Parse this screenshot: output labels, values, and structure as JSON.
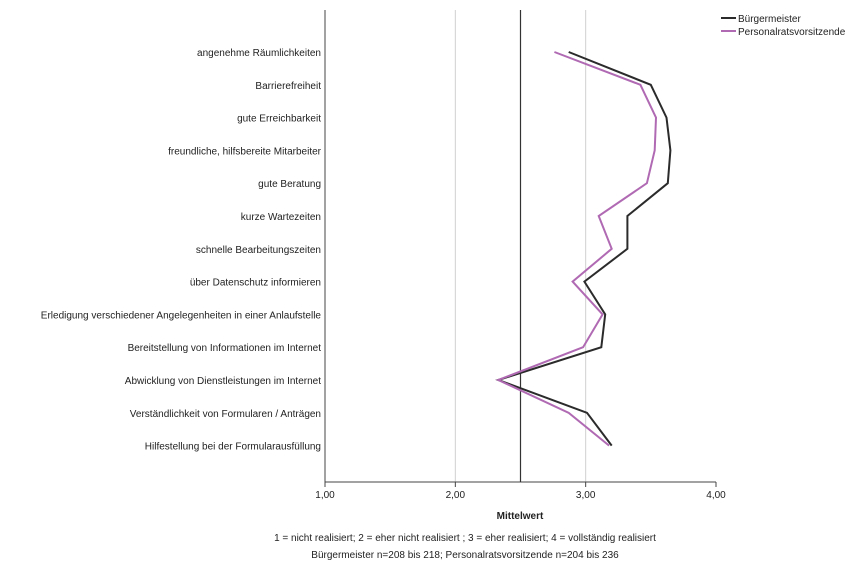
{
  "chart_data": {
    "type": "line",
    "orientation": "horizontal",
    "categories": [
      "angenehme Räumlichkeiten",
      "Barrierefreiheit",
      "gute Erreichbarkeit",
      "freundliche, hilfsbereite Mitarbeiter",
      "gute Beratung",
      "kurze Wartezeiten",
      "schnelle Bearbeitungszeiten",
      "über Datenschutz informieren",
      "Erledigung verschiedener Angelegenheiten in einer Anlaufstelle",
      "Bereitstellung von Informationen im Internet",
      "Abwicklung von Dienstleistungen im Internet",
      "Verständlichkeit von Formularen / Anträgen",
      "Hilfestellung bei der Formularausfüllung"
    ],
    "series": [
      {
        "name": "Bürgermeister",
        "color": "#2b2b2b",
        "values": [
          2.87,
          3.5,
          3.62,
          3.65,
          3.63,
          3.32,
          3.32,
          2.99,
          3.15,
          3.12,
          2.33,
          3.01,
          3.2
        ]
      },
      {
        "name": "Personalratsvorsitzende",
        "color": "#b06ab3",
        "values": [
          2.76,
          3.42,
          3.54,
          3.53,
          3.47,
          3.1,
          3.2,
          2.9,
          3.13,
          2.98,
          2.33,
          2.87,
          3.18
        ]
      }
    ],
    "xlim": [
      1,
      4
    ],
    "xticks": [
      "1,00",
      "2,00",
      "3,00",
      "4,00"
    ],
    "xtick_values": [
      1,
      2,
      3,
      4
    ],
    "gridlines_at": [
      2,
      3
    ],
    "reference_line": 2.5,
    "xlabel": "Mittelwert",
    "legend_position": "top-right",
    "footnotes": [
      "1 = nicht realisiert; 2 = eher nicht realisiert ; 3 = eher realisiert; 4 = vollständig realisiert",
      "Bürgermeister n=208 bis 218; Personalratsvorsitzende n=204 bis 236"
    ]
  }
}
